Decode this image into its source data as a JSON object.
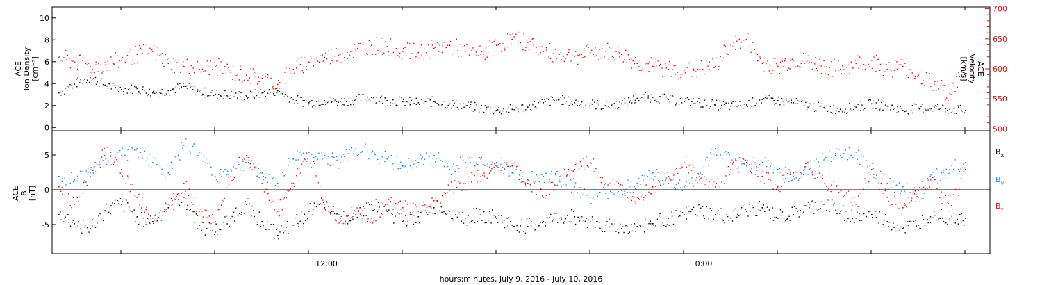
{
  "figure": {
    "xlabel": "hours:minutes, July  9, 2016 - July 10, 2016",
    "x_tick_labels": [
      "12:00",
      "0:00"
    ]
  },
  "chart_data": [
    {
      "type": "scatter",
      "panel": "top",
      "title": "",
      "xlabel": "hours:minutes, July  9, 2016 - July 10, 2016",
      "x_unit": "hours since July 9, 2016 00:00",
      "xlim": [
        3.8,
        33.8
      ],
      "grid": false,
      "left_axis": {
        "label_lines": [
          "ACE",
          "Ion Density",
          "[cm⁻³]"
        ],
        "ylim": [
          -0.3,
          11
        ],
        "tick_values": [
          0,
          2,
          4,
          6,
          8,
          10
        ],
        "tick_labels": [
          "0",
          "2",
          "4",
          "6",
          "8",
          "10"
        ],
        "color": "#000000"
      },
      "right_axis": {
        "label_lines": [
          "ACE",
          "Velocity",
          "[km/s]"
        ],
        "ylim": [
          497,
          703
        ],
        "tick_values": [
          500,
          550,
          600,
          650,
          700
        ],
        "tick_labels": [
          "500",
          "550",
          "600",
          "650",
          "700"
        ],
        "color": "#e01010"
      },
      "series": [
        {
          "axis": "left",
          "color": "#000000",
          "x": [
            4.0,
            4.5,
            5.0,
            5.5,
            6.0,
            6.5,
            7.0,
            7.5,
            8.0,
            8.5,
            9.0,
            9.5,
            10.0,
            10.5,
            11.0,
            11.5,
            12.0,
            12.5,
            13.0,
            13.5,
            14.0,
            14.5,
            15.0,
            15.5,
            16.0,
            16.5,
            17.0,
            17.5,
            18.0,
            18.5,
            19.0,
            19.5,
            20.0,
            20.5,
            21.0,
            21.5,
            22.0,
            22.5,
            23.0,
            23.5,
            24.0,
            24.5,
            25.0,
            25.5,
            26.0,
            26.5,
            27.0,
            27.5,
            28.0,
            28.5,
            29.0,
            29.5,
            30.0,
            30.5,
            31.0,
            31.5,
            32.0,
            32.5,
            33.0
          ],
          "y": [
            3.2,
            4.0,
            4.6,
            3.9,
            3.5,
            3.6,
            3.2,
            3.4,
            3.8,
            3.3,
            3.1,
            3.0,
            2.9,
            3.2,
            3.4,
            2.6,
            2.3,
            2.5,
            2.4,
            2.6,
            2.8,
            2.5,
            2.4,
            2.3,
            2.4,
            2.2,
            2.0,
            1.8,
            1.6,
            1.7,
            1.9,
            2.3,
            2.6,
            2.3,
            2.2,
            2.0,
            2.2,
            2.7,
            2.8,
            2.6,
            2.4,
            2.3,
            2.1,
            2.0,
            2.1,
            2.6,
            2.5,
            2.3,
            2.0,
            1.8,
            1.7,
            1.9,
            2.2,
            2.0,
            1.6,
            1.8,
            1.9,
            1.7,
            1.6
          ]
        },
        {
          "axis": "right",
          "color": "#e01010",
          "x": [
            4.0,
            4.5,
            5.0,
            5.5,
            6.0,
            6.5,
            7.0,
            7.5,
            8.0,
            8.5,
            9.0,
            9.5,
            10.0,
            10.5,
            11.0,
            11.5,
            12.0,
            12.5,
            13.0,
            13.5,
            14.0,
            14.5,
            15.0,
            15.5,
            16.0,
            16.5,
            17.0,
            17.5,
            18.0,
            18.5,
            19.0,
            19.5,
            20.0,
            20.5,
            21.0,
            21.5,
            22.0,
            22.5,
            23.0,
            23.5,
            24.0,
            24.5,
            25.0,
            25.5,
            26.0,
            26.5,
            27.0,
            27.5,
            28.0,
            28.5,
            29.0,
            29.5,
            30.0,
            30.5,
            31.0,
            31.5,
            32.0,
            32.5,
            33.0
          ],
          "y": [
            620,
            612,
            605,
            608,
            615,
            625,
            630,
            610,
            605,
            600,
            605,
            595,
            590,
            585,
            575,
            600,
            612,
            620,
            625,
            632,
            640,
            638,
            630,
            628,
            635,
            640,
            630,
            625,
            640,
            650,
            645,
            630,
            625,
            622,
            628,
            630,
            625,
            610,
            605,
            600,
            598,
            600,
            605,
            640,
            650,
            610,
            605,
            615,
            612,
            605,
            600,
            610,
            615,
            600,
            605,
            590,
            575,
            560,
            600
          ]
        }
      ]
    },
    {
      "type": "scatter",
      "panel": "bottom",
      "title": "",
      "xlabel": "hours:minutes, July  9, 2016 - July 10, 2016",
      "x_unit": "hours since July 9, 2016 00:00",
      "xlim": [
        3.8,
        33.8
      ],
      "grid": false,
      "zero_line": true,
      "left_axis": {
        "label_lines": [
          "ACE",
          "B",
          "[nT]"
        ],
        "ylim": [
          -9.2,
          8.5
        ],
        "tick_values": [
          -5,
          0,
          5
        ],
        "tick_labels": [
          "-5",
          "0",
          "5"
        ],
        "color": "#000000"
      },
      "legend": "right",
      "series": [
        {
          "name": "Bx",
          "legend_main": "B",
          "legend_sub": "x",
          "color": "#000000",
          "x": [
            4.0,
            4.5,
            5.0,
            5.5,
            6.0,
            6.5,
            7.0,
            7.5,
            8.0,
            8.5,
            9.0,
            9.5,
            10.0,
            10.5,
            11.0,
            11.5,
            12.0,
            12.5,
            13.0,
            13.5,
            14.0,
            14.5,
            15.0,
            15.5,
            16.0,
            16.5,
            17.0,
            17.5,
            18.0,
            18.5,
            19.0,
            19.5,
            20.0,
            20.5,
            21.0,
            21.5,
            22.0,
            22.5,
            23.0,
            23.5,
            24.0,
            24.5,
            25.0,
            25.5,
            26.0,
            26.5,
            27.0,
            27.5,
            28.0,
            28.5,
            29.0,
            29.5,
            30.0,
            30.5,
            31.0,
            31.5,
            32.0,
            32.5,
            33.0
          ],
          "y": [
            -3.5,
            -4.8,
            -5.5,
            -3.0,
            -2.0,
            -3.8,
            -4.5,
            -2.5,
            -1.0,
            -5.0,
            -6.0,
            -4.0,
            -2.0,
            -4.5,
            -6.5,
            -5.0,
            -3.0,
            -2.5,
            -4.0,
            -3.5,
            -2.0,
            -3.0,
            -4.5,
            -3.8,
            -2.5,
            -3.0,
            -4.0,
            -3.5,
            -4.0,
            -5.0,
            -5.2,
            -4.5,
            -4.0,
            -3.8,
            -4.5,
            -5.0,
            -5.5,
            -5.2,
            -4.8,
            -4.0,
            -3.5,
            -3.0,
            -3.5,
            -4.0,
            -3.0,
            -2.5,
            -4.0,
            -3.5,
            -2.5,
            -2.0,
            -3.0,
            -4.0,
            -3.5,
            -4.5,
            -5.5,
            -5.0,
            -3.0,
            -4.0,
            -4.0
          ]
        },
        {
          "name": "By",
          "legend_main": "B",
          "legend_sub": "y",
          "color": "#1a88e0",
          "x": [
            4.0,
            4.5,
            5.0,
            5.5,
            6.0,
            6.5,
            7.0,
            7.5,
            8.0,
            8.5,
            9.0,
            9.5,
            10.0,
            10.5,
            11.0,
            11.5,
            12.0,
            12.5,
            13.0,
            13.5,
            14.0,
            14.5,
            15.0,
            15.5,
            16.0,
            16.5,
            17.0,
            17.5,
            18.0,
            18.5,
            19.0,
            19.5,
            20.0,
            20.5,
            21.0,
            21.5,
            22.0,
            22.5,
            23.0,
            23.5,
            24.0,
            24.5,
            25.0,
            25.5,
            26.0,
            26.5,
            27.0,
            27.5,
            28.0,
            28.5,
            29.0,
            29.5,
            30.0,
            30.5,
            31.0,
            31.5,
            32.0,
            32.5,
            33.0
          ],
          "y": [
            2.0,
            1.5,
            2.5,
            4.5,
            5.0,
            6.0,
            4.0,
            2.5,
            6.5,
            5.5,
            2.0,
            3.0,
            4.0,
            2.5,
            1.0,
            4.5,
            5.5,
            5.0,
            4.0,
            6.0,
            5.5,
            4.5,
            3.5,
            4.0,
            5.0,
            3.0,
            4.0,
            4.5,
            3.5,
            2.5,
            1.5,
            2.0,
            1.5,
            0.5,
            -1.0,
            -0.5,
            0.0,
            1.0,
            2.5,
            1.0,
            0.5,
            2.0,
            6.0,
            4.0,
            3.5,
            4.0,
            3.0,
            2.0,
            3.0,
            4.5,
            5.0,
            5.5,
            3.0,
            1.0,
            0.5,
            -1.0,
            2.0,
            3.0,
            4.0
          ]
        },
        {
          "name": "Bz",
          "legend_main": "B",
          "legend_sub": "z",
          "color": "#e01010",
          "x": [
            4.0,
            4.5,
            5.0,
            5.5,
            6.0,
            6.5,
            7.0,
            7.5,
            8.0,
            8.5,
            9.0,
            9.5,
            10.0,
            10.5,
            11.0,
            11.5,
            12.0,
            12.5,
            13.0,
            13.5,
            14.0,
            14.5,
            15.0,
            15.5,
            16.0,
            16.5,
            17.0,
            17.5,
            18.0,
            18.5,
            19.0,
            19.5,
            20.0,
            20.5,
            21.0,
            21.5,
            22.0,
            22.5,
            23.0,
            23.5,
            24.0,
            24.5,
            25.0,
            25.5,
            26.0,
            26.5,
            27.0,
            27.5,
            28.0,
            28.5,
            29.0,
            29.5,
            30.0,
            30.5,
            31.0,
            31.5,
            32.0,
            32.5,
            33.0
          ],
          "y": [
            0.5,
            -2.0,
            2.0,
            5.5,
            3.0,
            -1.0,
            -4.0,
            -2.0,
            1.0,
            -3.0,
            -4.5,
            2.0,
            5.0,
            1.0,
            -3.0,
            1.0,
            5.5,
            -2.0,
            -4.5,
            -3.0,
            -4.0,
            -2.0,
            -2.5,
            -3.0,
            -1.5,
            0.0,
            1.0,
            2.0,
            4.0,
            3.5,
            1.0,
            -1.0,
            2.0,
            3.0,
            4.0,
            1.0,
            0.0,
            -1.0,
            0.5,
            2.0,
            4.0,
            1.5,
            0.5,
            3.0,
            4.0,
            2.0,
            0.5,
            2.5,
            3.0,
            1.0,
            0.0,
            -2.0,
            3.0,
            -1.0,
            -2.5,
            0.0,
            1.5,
            -3.0,
            3.0
          ]
        }
      ]
    }
  ]
}
